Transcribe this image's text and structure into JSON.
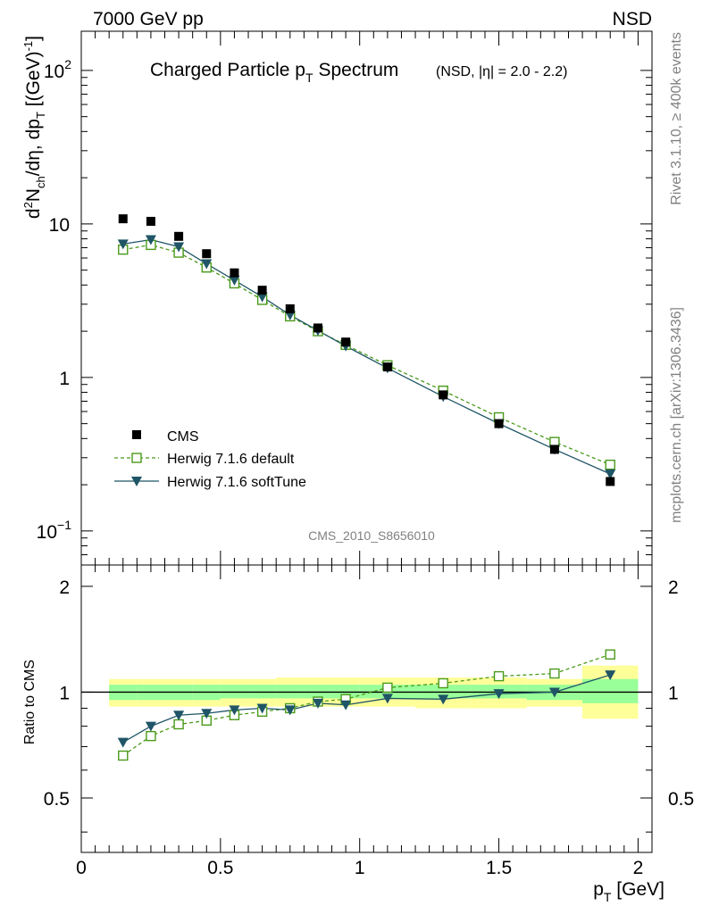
{
  "header": {
    "left": "7000 GeV pp",
    "right": "NSD"
  },
  "side_text": {
    "rivet": "Rivet 3.1.10, ≥ 400k events",
    "mcplots": "mcplots.cern.ch [arXiv:1306.3436]"
  },
  "watermark": "CMS_2010_S8656010",
  "chart_data": [
    {
      "type": "scatter",
      "title": "Charged Particle p",
      "title_sub": "T",
      "title_tail": "Spectrum",
      "title_note": "(NSD, |η| = 2.0 - 2.2)",
      "ylabel_parts": [
        "d",
        "2",
        "N",
        "ch",
        "/dη, dp",
        "T",
        " [(GeV)",
        "-1",
        "]"
      ],
      "yscale": "log",
      "ylim": [
        0.06,
        180
      ],
      "xlim": [
        0,
        2.05
      ],
      "y_ticks": [
        {
          "value": 100,
          "base": "10",
          "exp": "2"
        },
        {
          "value": 10,
          "base": "10",
          "exp": ""
        },
        {
          "value": 1,
          "base": "1",
          "exp": ""
        },
        {
          "value": 0.1,
          "base": "10",
          "exp": "−1"
        }
      ],
      "legend_position": "lower-left",
      "series": [
        {
          "name": "CMS",
          "marker": "filled-square",
          "color": "#000000",
          "x": [
            0.15,
            0.25,
            0.35,
            0.45,
            0.55,
            0.65,
            0.75,
            0.85,
            0.95,
            1.1,
            1.3,
            1.5,
            1.7,
            1.9
          ],
          "y": [
            10.8,
            10.4,
            8.3,
            6.4,
            4.8,
            3.7,
            2.8,
            2.1,
            1.7,
            1.17,
            0.77,
            0.5,
            0.34,
            0.21
          ]
        },
        {
          "name": "Herwig 7.1.6 default",
          "marker": "open-square",
          "line": "dashed",
          "color": "#4a9a1a",
          "x": [
            0.15,
            0.25,
            0.35,
            0.45,
            0.55,
            0.65,
            0.75,
            0.85,
            0.95,
            1.1,
            1.3,
            1.5,
            1.7,
            1.9
          ],
          "y": [
            6.8,
            7.3,
            6.5,
            5.2,
            4.1,
            3.2,
            2.5,
            2.0,
            1.63,
            1.2,
            0.82,
            0.55,
            0.38,
            0.27
          ]
        },
        {
          "name": "Herwig 7.1.6 softTune",
          "marker": "filled-triangle-down",
          "line": "solid",
          "color": "#1f5566",
          "x": [
            0.15,
            0.25,
            0.35,
            0.45,
            0.55,
            0.65,
            0.75,
            0.85,
            0.95,
            1.1,
            1.3,
            1.5,
            1.7,
            1.9
          ],
          "y": [
            7.4,
            7.9,
            7.1,
            5.5,
            4.3,
            3.35,
            2.55,
            2.02,
            1.6,
            1.15,
            0.75,
            0.5,
            0.34,
            0.235
          ]
        }
      ]
    },
    {
      "type": "scatter",
      "ylabel": "Ratio to CMS",
      "xlabel": "p",
      "xlabel_sub": "T",
      "xlabel_tail": " [GeV]",
      "xlim": [
        0,
        2.05
      ],
      "ylim": [
        0.35,
        2.3
      ],
      "yscale": "log",
      "x_ticks": [
        "0",
        "0.5",
        "1",
        "1.5",
        "2"
      ],
      "x_tick_values": [
        0,
        0.5,
        1,
        1.5,
        2
      ],
      "y_ticks": [
        "0.5",
        "1",
        "2"
      ],
      "y_tick_values": [
        0.5,
        1,
        2
      ],
      "bands": {
        "bin_edges": [
          0.1,
          0.2,
          0.3,
          0.4,
          0.5,
          0.6,
          0.7,
          0.8,
          0.9,
          1.0,
          1.2,
          1.4,
          1.6,
          1.8,
          2.0
        ],
        "outer_color": "#ffff99",
        "inner_color": "#99ff99",
        "outer_low": [
          0.91,
          0.91,
          0.91,
          0.91,
          0.91,
          0.91,
          0.91,
          0.91,
          0.91,
          0.91,
          0.9,
          0.9,
          0.91,
          0.84
        ],
        "outer_high": [
          1.09,
          1.09,
          1.09,
          1.09,
          1.09,
          1.09,
          1.1,
          1.1,
          1.1,
          1.1,
          1.1,
          1.1,
          1.09,
          1.19
        ],
        "inner_low": [
          0.95,
          0.95,
          0.95,
          0.95,
          0.96,
          0.96,
          0.96,
          0.96,
          0.96,
          0.96,
          0.96,
          0.96,
          0.95,
          0.93
        ],
        "inner_high": [
          1.05,
          1.05,
          1.05,
          1.05,
          1.05,
          1.05,
          1.05,
          1.05,
          1.05,
          1.05,
          1.05,
          1.05,
          1.05,
          1.09
        ]
      },
      "series": [
        {
          "name": "Herwig 7.1.6 default",
          "color": "#4a9a1a",
          "x": [
            0.15,
            0.25,
            0.35,
            0.45,
            0.55,
            0.65,
            0.75,
            0.85,
            0.95,
            1.1,
            1.3,
            1.5,
            1.7,
            1.9
          ],
          "y": [
            0.66,
            0.75,
            0.81,
            0.83,
            0.86,
            0.88,
            0.9,
            0.94,
            0.955,
            1.03,
            1.06,
            1.11,
            1.13,
            1.28
          ]
        },
        {
          "name": "Herwig 7.1.6 softTune",
          "color": "#1f5566",
          "x": [
            0.15,
            0.25,
            0.35,
            0.45,
            0.55,
            0.65,
            0.75,
            0.85,
            0.95,
            1.1,
            1.3,
            1.5,
            1.7,
            1.9
          ],
          "y": [
            0.72,
            0.8,
            0.86,
            0.87,
            0.89,
            0.9,
            0.89,
            0.93,
            0.92,
            0.96,
            0.955,
            0.99,
            1.0,
            1.12
          ]
        }
      ]
    }
  ]
}
